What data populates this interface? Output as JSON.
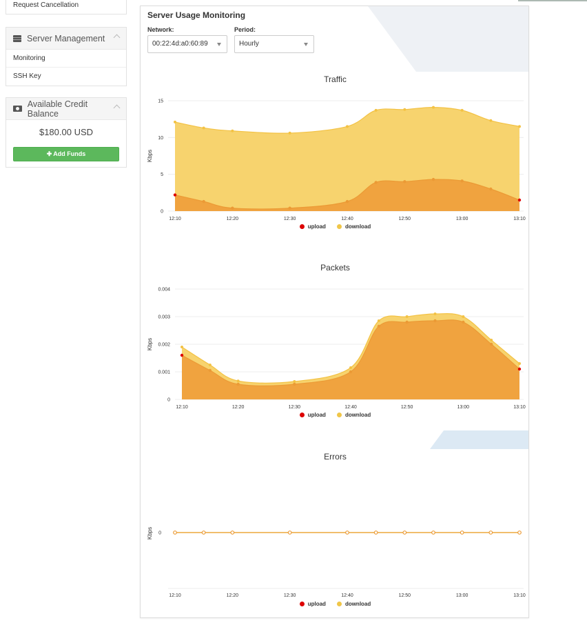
{
  "sidebar": {
    "top_link": "Request Cancellation",
    "server_management": {
      "title": "Server Management",
      "icon": "server-icon",
      "items": [
        {
          "label": "Monitoring"
        },
        {
          "label": "SSH Key"
        }
      ]
    },
    "credit": {
      "title": "Available Credit Balance",
      "icon": "money-icon",
      "amount": "$180.00 USD",
      "button_label": "Add Funds"
    }
  },
  "main": {
    "title": "Server Usage Monitoring",
    "network": {
      "label": "Network:",
      "value": "00:22:4d:a0:60:89"
    },
    "period": {
      "label": "Period:",
      "value": "Hourly"
    }
  },
  "colors": {
    "upload": "#dd0000",
    "download": "#f0c648",
    "upload_fill": "#f0a33f",
    "download_fill": "#f7d36e",
    "deco": "#dce9f4",
    "deco_gray": "#eef1f5"
  },
  "chart_data": [
    {
      "type": "area",
      "title": "Traffic",
      "ylabel": "Kbps",
      "ylim": [
        0,
        15
      ],
      "yticks": [
        "0",
        "5",
        "10",
        "15"
      ],
      "xticks": [
        "12:10",
        "12:20",
        "12:30",
        "12:40",
        "12:50",
        "13:00",
        "13:10"
      ],
      "x": [
        "12:10",
        "12:15",
        "12:20",
        "12:30",
        "12:40",
        "12:45",
        "12:50",
        "12:55",
        "13:00",
        "13:05",
        "13:10"
      ],
      "series": [
        {
          "name": "upload",
          "values": [
            2.2,
            1.3,
            0.4,
            0.4,
            1.3,
            3.9,
            4.0,
            4.3,
            4.1,
            3.0,
            1.5
          ]
        },
        {
          "name": "download",
          "values": [
            9.9,
            10.0,
            10.5,
            10.2,
            10.2,
            9.8,
            9.8,
            9.8,
            9.6,
            9.3,
            10.0
          ]
        }
      ],
      "legend": "bottom",
      "grid": true
    },
    {
      "type": "area",
      "title": "Packets",
      "ylabel": "Kbps",
      "ylim": [
        0,
        0.004
      ],
      "yticks": [
        "0",
        "0.001",
        "0.002",
        "0.003",
        "0.004"
      ],
      "xticks": [
        "12:10",
        "12:20",
        "12:30",
        "12:40",
        "12:50",
        "13:00",
        "13:10"
      ],
      "x": [
        "12:10",
        "12:15",
        "12:20",
        "12:30",
        "12:40",
        "12:45",
        "12:50",
        "12:55",
        "13:00",
        "13:05",
        "13:10"
      ],
      "series": [
        {
          "name": "upload",
          "values": [
            0.0016,
            0.00105,
            0.00055,
            0.00055,
            0.001,
            0.00265,
            0.0028,
            0.00285,
            0.0028,
            0.002,
            0.0011
          ]
        },
        {
          "name": "download",
          "values": [
            0.0003,
            0.0002,
            0.00012,
            0.0001,
            0.00015,
            0.0002,
            0.0002,
            0.00025,
            0.0002,
            0.00015,
            0.0002
          ]
        }
      ],
      "legend": "bottom",
      "grid": true
    },
    {
      "type": "line",
      "title": "Errors",
      "ylabel": "Kbps",
      "yticks": [
        "0"
      ],
      "xticks": [
        "12:10",
        "12:20",
        "12:30",
        "12:40",
        "12:50",
        "13:00",
        "13:10"
      ],
      "x": [
        "12:10",
        "12:15",
        "12:20",
        "12:30",
        "12:40",
        "12:45",
        "12:50",
        "12:55",
        "13:00",
        "13:05",
        "13:10"
      ],
      "series": [
        {
          "name": "upload",
          "values": [
            0,
            0,
            0,
            0,
            0,
            0,
            0,
            0,
            0,
            0,
            0
          ]
        },
        {
          "name": "download",
          "values": [
            0,
            0,
            0,
            0,
            0,
            0,
            0,
            0,
            0,
            0,
            0
          ]
        }
      ],
      "legend": "bottom",
      "grid": false
    }
  ]
}
